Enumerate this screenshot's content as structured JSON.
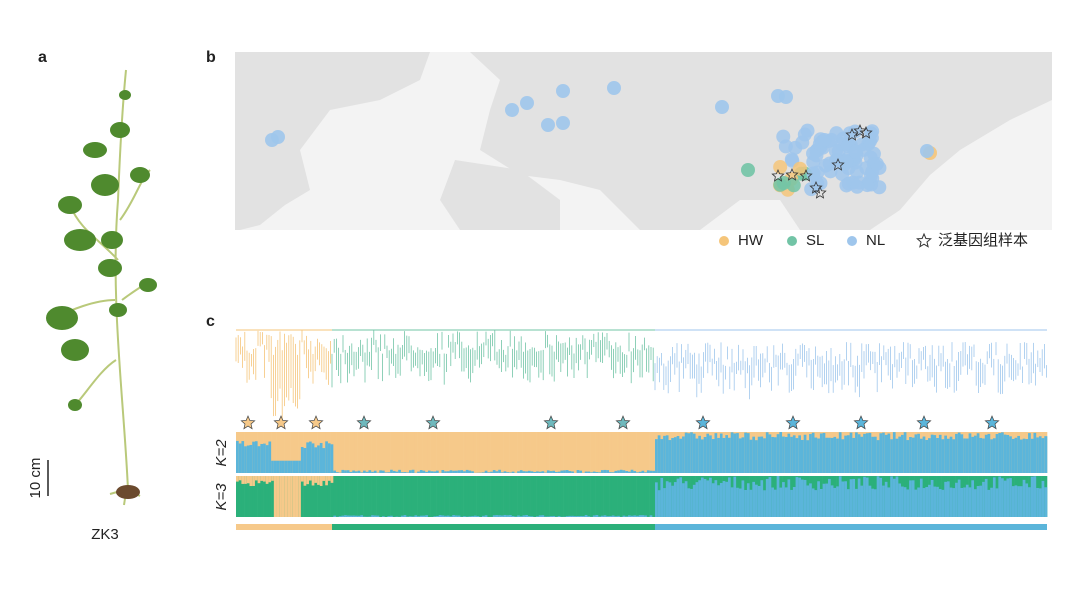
{
  "panel_a": {
    "label": "a",
    "scale_bar": "10 cm",
    "sample": "ZK3"
  },
  "panel_b": {
    "label": "b",
    "legend": [
      {
        "name": "HW",
        "color": "#f5c57a"
      },
      {
        "name": "SL",
        "color": "#72c4a6"
      },
      {
        "name": "NL",
        "color": "#9fc6ec"
      },
      {
        "name": "泛基因组样本"
      }
    ]
  },
  "panel_c": {
    "label": "c",
    "k_labels": [
      "K=2",
      "K=3"
    ]
  }
}
